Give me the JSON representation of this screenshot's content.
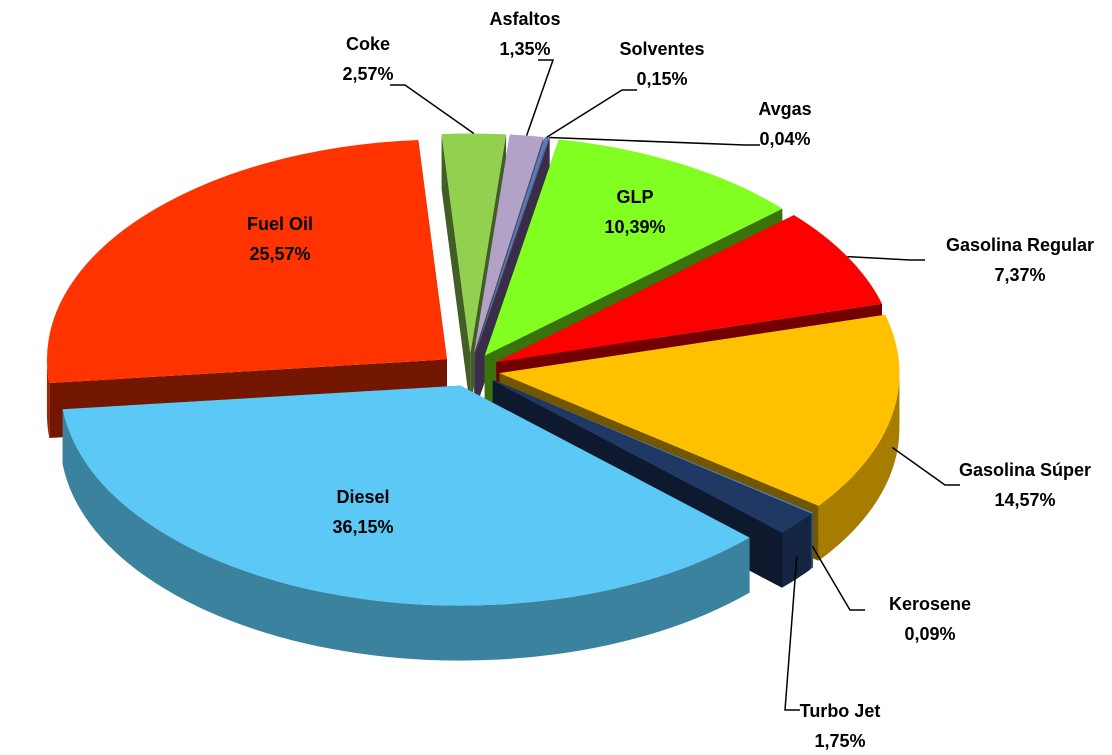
{
  "chart_data": {
    "type": "pie",
    "categories": [
      "Solventes",
      "Avgas",
      "GLP",
      "Gasolina Regular",
      "Gasolina Súper",
      "Kerosene",
      "Turbo Jet",
      "Diesel",
      "Fuel Oil",
      "Coke",
      "Asfaltos"
    ],
    "values": [
      0.15,
      0.04,
      10.39,
      7.37,
      14.57,
      0.09,
      1.75,
      36.15,
      25.57,
      2.57,
      1.35
    ],
    "value_labels": [
      "0,15%",
      "0,04%",
      "10,39%",
      "7,37%",
      "14,57%",
      "0,09%",
      "1,75%",
      "36,15%",
      "25,57%",
      "2,57%",
      "1,35%"
    ],
    "colors": [
      "#4f81bd",
      "#8064a2",
      "#80ff20",
      "#ff0000",
      "#ffc000",
      "#4f81bd",
      "#1f3864",
      "#5bc8f5",
      "#ff3300",
      "#92d050",
      "#b3a2c7"
    ]
  }
}
